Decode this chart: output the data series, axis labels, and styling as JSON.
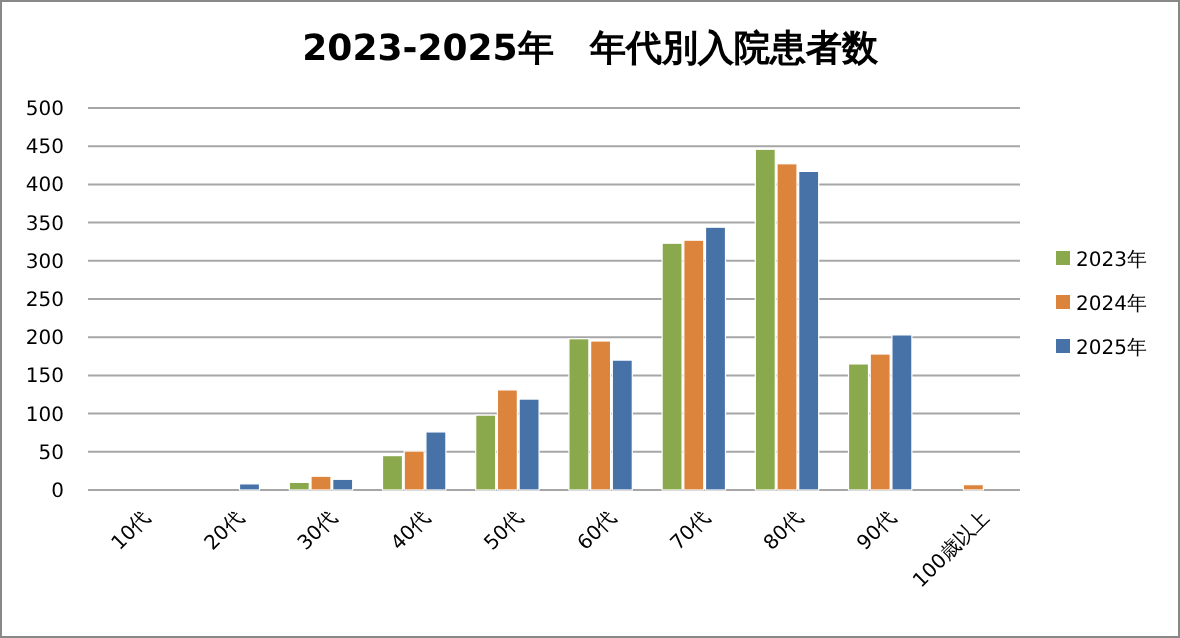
{
  "chart_data": {
    "type": "bar",
    "title": "2023-2025年　年代別入院患者数",
    "categories": [
      "10代",
      "20代",
      "30代",
      "40代",
      "50代",
      "60代",
      "70代",
      "80代",
      "90代",
      "100歳以上"
    ],
    "series": [
      {
        "name": "2023年",
        "color": "#8aa84c",
        "values": [
          0,
          0,
          10,
          45,
          98,
          198,
          323,
          446,
          165,
          0
        ]
      },
      {
        "name": "2024年",
        "color": "#dd843c",
        "values": [
          0,
          0,
          18,
          51,
          131,
          195,
          327,
          427,
          178,
          7
        ]
      },
      {
        "name": "2025年",
        "color": "#4672a8",
        "values": [
          0,
          8,
          14,
          76,
          119,
          170,
          344,
          417,
          203,
          0
        ]
      }
    ],
    "ylim": [
      0,
      500
    ],
    "yticks": [
      0,
      50,
      100,
      150,
      200,
      250,
      300,
      350,
      400,
      450,
      500
    ],
    "grid": "y",
    "legend": "right"
  }
}
